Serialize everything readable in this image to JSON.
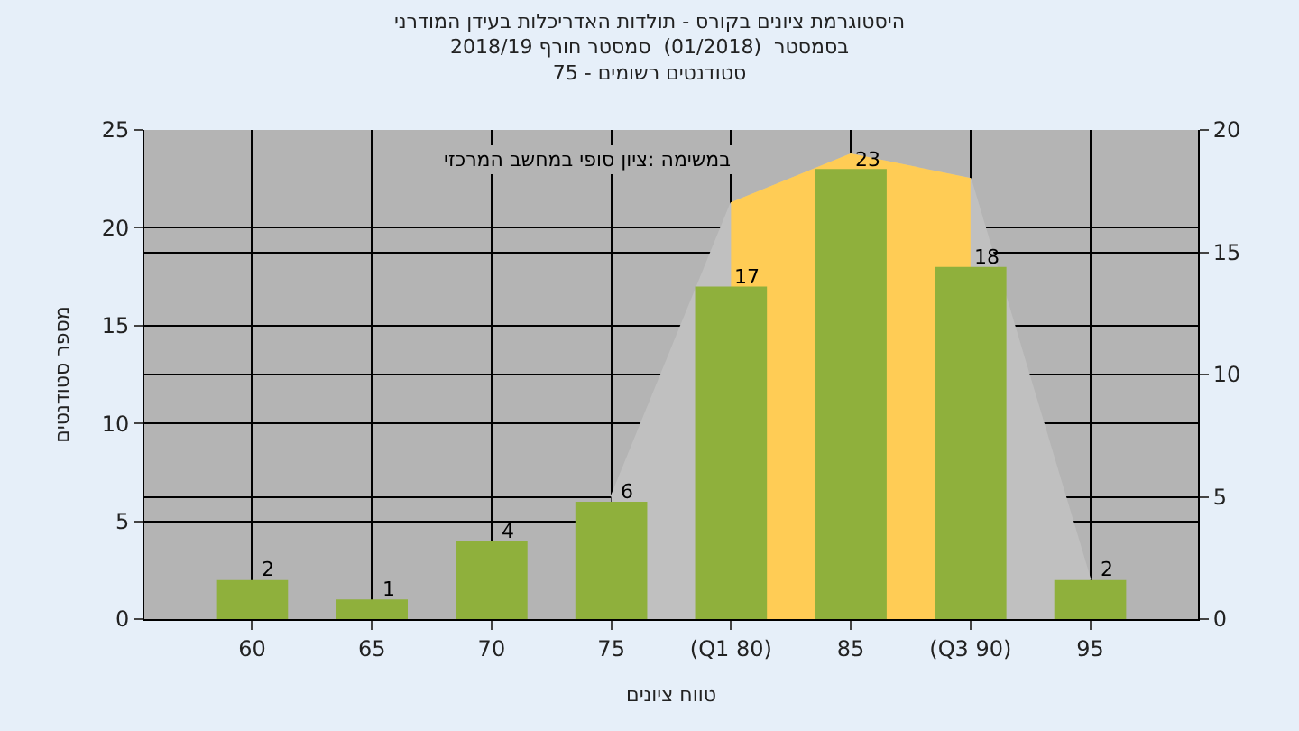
{
  "chart_data": {
    "type": "bar",
    "title": "היסטוגרמת ציונים בקורס - תולדות האדריכלות בעידן המודרני\nבסמסטר  (01/2018)  סמסטר חורף 2018/19\nסטודנטים רשומים - 75",
    "xlabel": "טווח ציונים",
    "ylabel": "מספר סטודנטים",
    "annotations": [
      "במשימה :ציון סופי במחשב המרכזי"
    ],
    "categories": [
      "60",
      "65",
      "70",
      "75",
      "(Q1 80)",
      "85",
      "(Q3 90)",
      "95"
    ],
    "series": [
      {
        "type": "area",
        "axis": "y2",
        "color": "#c0c0c0",
        "values": [
          null,
          null,
          null,
          5,
          17,
          19,
          18,
          1.6
        ]
      },
      {
        "type": "area",
        "axis": "y2",
        "color": "#ffcc55",
        "values": [
          null,
          null,
          null,
          null,
          17,
          19,
          18,
          null
        ]
      },
      {
        "color": "#8fb03c",
        "values": [
          2,
          1,
          4,
          6,
          17,
          23,
          18,
          2
        ],
        "value_labels": [
          "2",
          "1",
          "4",
          "6",
          "17",
          "23",
          "18",
          "2"
        ]
      }
    ],
    "ylim": [
      0,
      25
    ],
    "yticks": [
      0,
      5,
      10,
      15,
      20,
      25
    ],
    "y2lim": [
      0,
      20
    ],
    "y2ticks": [
      0,
      5,
      10,
      15,
      20
    ],
    "grid": true
  }
}
